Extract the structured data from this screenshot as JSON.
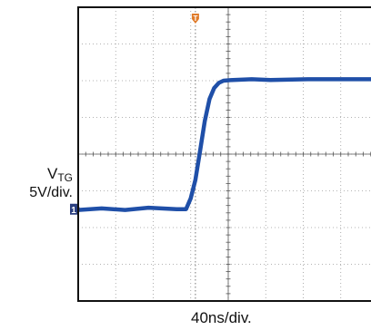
{
  "chart_data": {
    "type": "line",
    "title": "",
    "y_label_main": "V",
    "y_label_sub": "TG",
    "y_scale_label": "5V/div.",
    "x_scale_label": "40ns/div.",
    "x_unit": "ns",
    "y_unit": "V",
    "x_per_div": 40,
    "y_per_div": 5,
    "divisions": {
      "x": 8,
      "y": 8
    },
    "x_range_ns": [
      -125,
      195
    ],
    "y_range_v": [
      -12.5,
      27.5
    ],
    "grid": true,
    "channel_marker": "1",
    "trigger_marker": "T",
    "series": [
      {
        "values_description_free": true,
        "color": "#1f4fa8",
        "x": [
          -125,
          -100,
          -75,
          -50,
          -20,
          -10,
          -5,
          0,
          5,
          10,
          15,
          20,
          25,
          30,
          40,
          60,
          80,
          120,
          160,
          195
        ],
        "y": [
          -0.1,
          0.1,
          -0.1,
          0.2,
          0.0,
          0.0,
          1.5,
          4.0,
          8.0,
          12.0,
          15.0,
          16.5,
          17.2,
          17.5,
          17.6,
          17.7,
          17.6,
          17.7,
          17.7,
          17.7
        ]
      }
    ]
  },
  "colors": {
    "trace": "#1f4fa8",
    "trigger": "#e07b2a",
    "grid": "#9a9a9a",
    "frame": "#111111"
  }
}
